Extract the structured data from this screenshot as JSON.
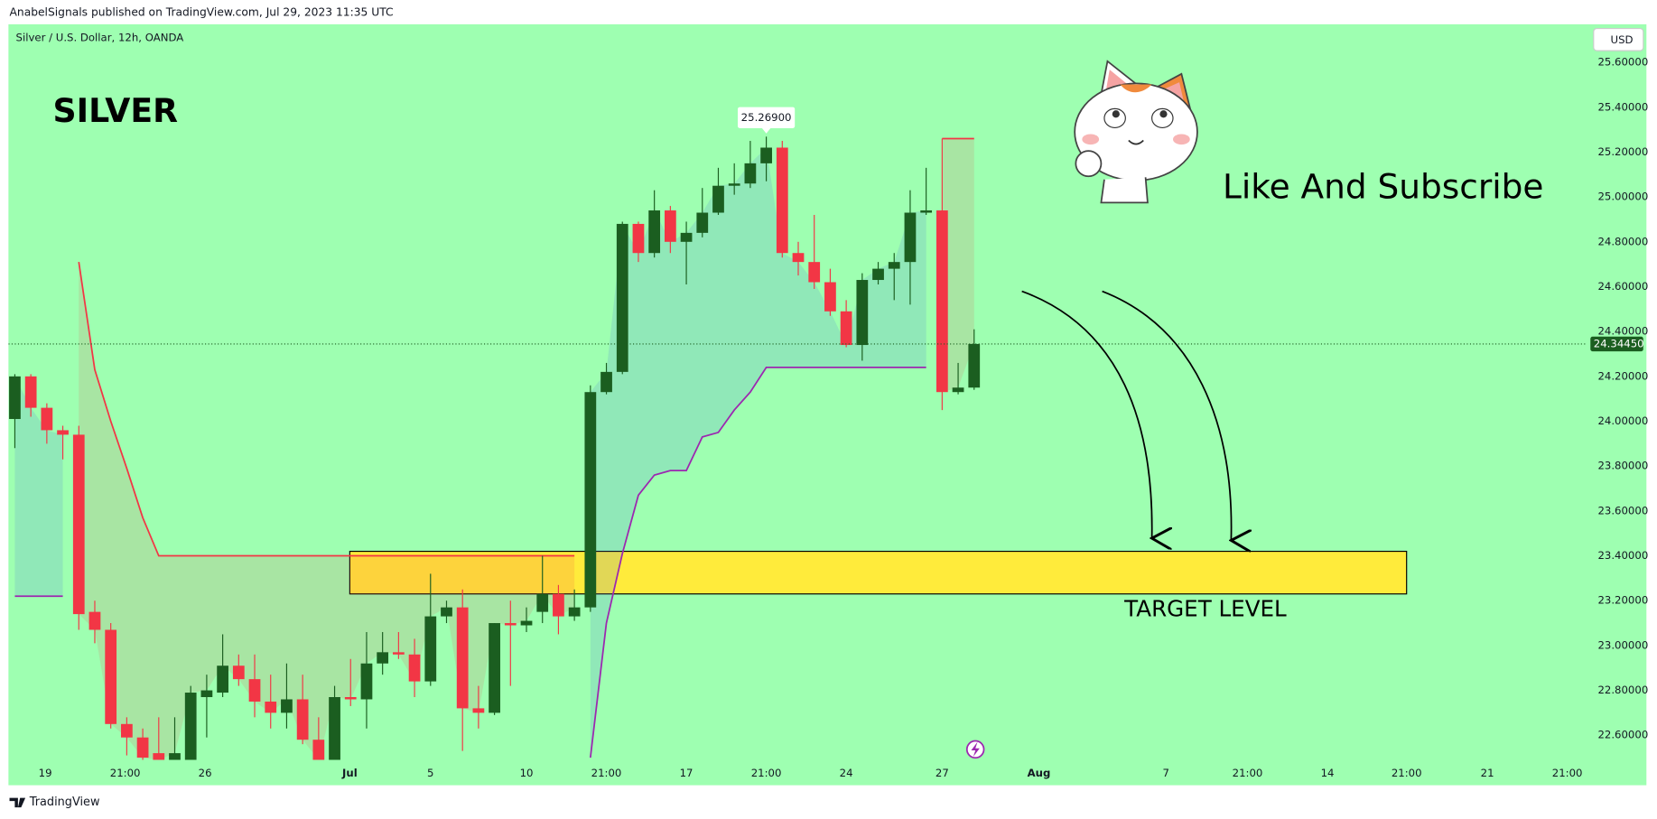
{
  "header": "AnabelSignals published on TradingView.com, Jul 29, 2023 11:35 UTC",
  "footer": "TradingView",
  "chart_data": {
    "type": "candlestick",
    "title": "Silver / U.S. Dollar, 12h, OANDA",
    "currency": "USD",
    "up_color": "#1b5e20",
    "down_color": "#f23645",
    "open": [
      24.01,
      24.2,
      24.06,
      23.96,
      23.94,
      23.15,
      23.07,
      22.65,
      22.59,
      22.52,
      22.49,
      22.49,
      22.77,
      22.79,
      22.91,
      22.85,
      22.75,
      22.7,
      22.76,
      22.58,
      22.49,
      22.77,
      22.76,
      22.92,
      22.97,
      22.96,
      22.84,
      23.13,
      23.17,
      22.72,
      22.7,
      23.1,
      23.09,
      23.15,
      23.23,
      23.13,
      23.17,
      24.13,
      24.22,
      24.88,
      24.75,
      24.94,
      24.8,
      24.84,
      24.93,
      25.05,
      25.06,
      25.15,
      25.22,
      24.75,
      24.71,
      24.62,
      24.49,
      24.34,
      24.63,
      24.68,
      24.71,
      24.93,
      24.94,
      24.13,
      24.15
    ],
    "high": [
      24.21,
      24.21,
      24.08,
      23.98,
      23.98,
      23.2,
      23.1,
      22.68,
      22.63,
      22.68,
      22.68,
      22.82,
      22.87,
      23.05,
      22.96,
      22.96,
      22.87,
      22.92,
      22.87,
      22.68,
      22.82,
      22.94,
      23.06,
      23.06,
      23.06,
      23.03,
      23.32,
      23.2,
      23.25,
      22.82,
      23.1,
      23.2,
      23.17,
      23.4,
      23.27,
      23.25,
      24.16,
      24.26,
      24.89,
      24.89,
      25.03,
      24.96,
      24.89,
      25.04,
      25.13,
      25.15,
      25.25,
      25.269,
      25.25,
      24.8,
      24.92,
      24.68,
      24.54,
      24.66,
      24.71,
      24.75,
      25.03,
      25.13,
      25.26,
      24.26,
      24.41
    ],
    "low": [
      23.88,
      24.02,
      23.9,
      23.83,
      23.07,
      23.01,
      22.63,
      22.51,
      22.49,
      22.49,
      22.49,
      22.49,
      22.59,
      22.77,
      22.82,
      22.68,
      22.63,
      22.63,
      22.56,
      22.49,
      22.49,
      22.73,
      22.63,
      22.87,
      22.94,
      22.77,
      22.82,
      23.1,
      22.53,
      22.63,
      22.69,
      22.82,
      23.06,
      23.1,
      23.05,
      23.11,
      23.15,
      24.12,
      24.21,
      24.71,
      24.73,
      24.75,
      24.61,
      24.82,
      24.92,
      25.01,
      25.04,
      25.07,
      24.73,
      24.65,
      24.59,
      24.47,
      24.33,
      24.27,
      24.61,
      24.54,
      24.52,
      24.92,
      24.05,
      24.12,
      24.14
    ],
    "close": [
      24.2,
      24.06,
      23.96,
      23.94,
      23.14,
      23.07,
      22.65,
      22.59,
      22.5,
      22.49,
      22.52,
      22.79,
      22.8,
      22.91,
      22.85,
      22.75,
      22.7,
      22.76,
      22.58,
      22.49,
      22.77,
      22.76,
      22.92,
      22.97,
      22.96,
      22.84,
      23.13,
      23.17,
      22.72,
      22.7,
      23.1,
      23.09,
      23.11,
      23.23,
      23.13,
      23.17,
      24.13,
      24.22,
      24.88,
      24.75,
      24.94,
      24.8,
      24.84,
      24.93,
      25.05,
      25.06,
      25.15,
      25.22,
      24.75,
      24.71,
      24.62,
      24.49,
      24.34,
      24.63,
      24.68,
      24.71,
      24.93,
      24.94,
      24.13,
      24.15,
      24.3445
    ],
    "high_labels": [
      null,
      null,
      null,
      null,
      null,
      null,
      null,
      null,
      null,
      null,
      null,
      null,
      null,
      null,
      null,
      null,
      null,
      null,
      null,
      null,
      null,
      null,
      null,
      null,
      null,
      null,
      null,
      null,
      null,
      null,
      null,
      null,
      null,
      null,
      null,
      null,
      null,
      null,
      null,
      null,
      null,
      null,
      null,
      null,
      null,
      null,
      null,
      "25.26900",
      null,
      null,
      null,
      null,
      null,
      null,
      null,
      null,
      null,
      null,
      null,
      null,
      null
    ],
    "close_labels": [
      null,
      null,
      null,
      null,
      null,
      null,
      null,
      null,
      null,
      null,
      null,
      null,
      null,
      null,
      null,
      null,
      null,
      null,
      null,
      null,
      null,
      null,
      null,
      null,
      null,
      null,
      null,
      null,
      null,
      null,
      null,
      null,
      null,
      null,
      null,
      null,
      null,
      null,
      null,
      null,
      null,
      null,
      null,
      null,
      null,
      null,
      null,
      null,
      null,
      null,
      null,
      null,
      null,
      null,
      null,
      null,
      null,
      null,
      null,
      null,
      "24.34450"
    ],
    "lines": [
      {
        "color": "#f23645",
        "fill": "rgba(242,54,69,0.13)",
        "values": [
          null,
          null,
          null,
          null,
          24.71,
          24.23,
          24.0,
          23.79,
          23.57,
          23.4,
          23.4,
          23.4,
          23.4,
          23.4,
          23.4,
          23.4,
          23.4,
          23.4,
          23.4,
          23.4,
          23.4,
          23.4,
          23.4,
          23.4,
          23.4,
          23.4,
          23.4,
          23.4,
          23.4,
          23.4,
          23.4,
          23.4,
          23.4,
          23.4,
          23.4,
          23.4,
          null,
          null,
          null,
          null,
          null,
          null,
          null,
          null,
          null,
          null,
          null,
          null,
          null,
          null,
          null,
          null,
          null,
          null,
          null,
          null,
          null,
          null,
          25.26,
          25.26,
          25.26
        ]
      },
      {
        "color": "#9c27b0",
        "fill": "rgba(80,120,220,0.17)",
        "values": [
          23.22,
          23.22,
          23.22,
          23.22,
          null,
          null,
          null,
          null,
          null,
          null,
          null,
          null,
          null,
          null,
          null,
          null,
          null,
          null,
          null,
          null,
          null,
          null,
          null,
          null,
          null,
          null,
          null,
          null,
          null,
          null,
          null,
          null,
          null,
          null,
          null,
          null,
          22.5,
          23.1,
          23.41,
          23.67,
          23.76,
          23.78,
          23.78,
          23.93,
          23.95,
          24.05,
          24.13,
          24.24,
          24.24,
          24.24,
          24.24,
          24.24,
          24.24,
          24.24,
          24.24,
          24.24,
          24.24,
          24.24,
          null,
          null,
          null
        ]
      }
    ],
    "xlim": [
      -0.4,
      98.35
    ],
    "xticks": [
      {
        "value": 1.9,
        "label": "19"
      },
      {
        "value": 6.9,
        "label": "21:00"
      },
      {
        "value": 11.9,
        "label": "26"
      },
      {
        "value": 20.95,
        "label": "Jul"
      },
      {
        "value": 26.0,
        "label": "5"
      },
      {
        "value": 32.0,
        "label": "10"
      },
      {
        "value": 37.0,
        "label": "21:00"
      },
      {
        "value": 42.0,
        "label": "17"
      },
      {
        "value": 47.0,
        "label": "21:00"
      },
      {
        "value": 52.0,
        "label": "24"
      },
      {
        "value": 58.0,
        "label": "27"
      },
      {
        "value": 64.05,
        "label": "Aug"
      },
      {
        "value": 72.0,
        "label": "7"
      },
      {
        "value": 77.1,
        "label": "21:00"
      },
      {
        "value": 82.1,
        "label": "14"
      },
      {
        "value": 87.05,
        "label": "21:00"
      },
      {
        "value": 92.1,
        "label": "21"
      },
      {
        "value": 97.1,
        "label": "21:00"
      }
    ],
    "ylim": [
      22.49,
      25.77
    ],
    "yticks": [
      {
        "value": 25.6,
        "label": "25.60000"
      },
      {
        "value": 25.4,
        "label": "25.40000"
      },
      {
        "value": 25.2,
        "label": "25.20000"
      },
      {
        "value": 25.0,
        "label": "25.00000"
      },
      {
        "value": 24.8,
        "label": "24.80000"
      },
      {
        "value": 24.6,
        "label": "24.60000"
      },
      {
        "value": 24.4,
        "label": "24.40000"
      },
      {
        "value": 24.2,
        "label": "24.20000"
      },
      {
        "value": 24.0,
        "label": "24.00000"
      },
      {
        "value": 23.8,
        "label": "23.80000"
      },
      {
        "value": 23.6,
        "label": "23.60000"
      },
      {
        "value": 23.4,
        "label": "23.40000"
      },
      {
        "value": 23.2,
        "label": "23.20000"
      },
      {
        "value": 23.0,
        "label": "23.00000"
      },
      {
        "value": 22.8,
        "label": "22.80000"
      },
      {
        "value": 22.6,
        "label": "22.60000"
      }
    ],
    "grid": false,
    "background": "#9effb1",
    "target_zone": {
      "x": [
        20.95,
        87.05
      ],
      "y": [
        23.23,
        23.42
      ],
      "label": "TARGET LEVEL",
      "color": "#ffeb3b"
    },
    "annotations": [
      "SILVER",
      "Like And Subscribe"
    ]
  }
}
